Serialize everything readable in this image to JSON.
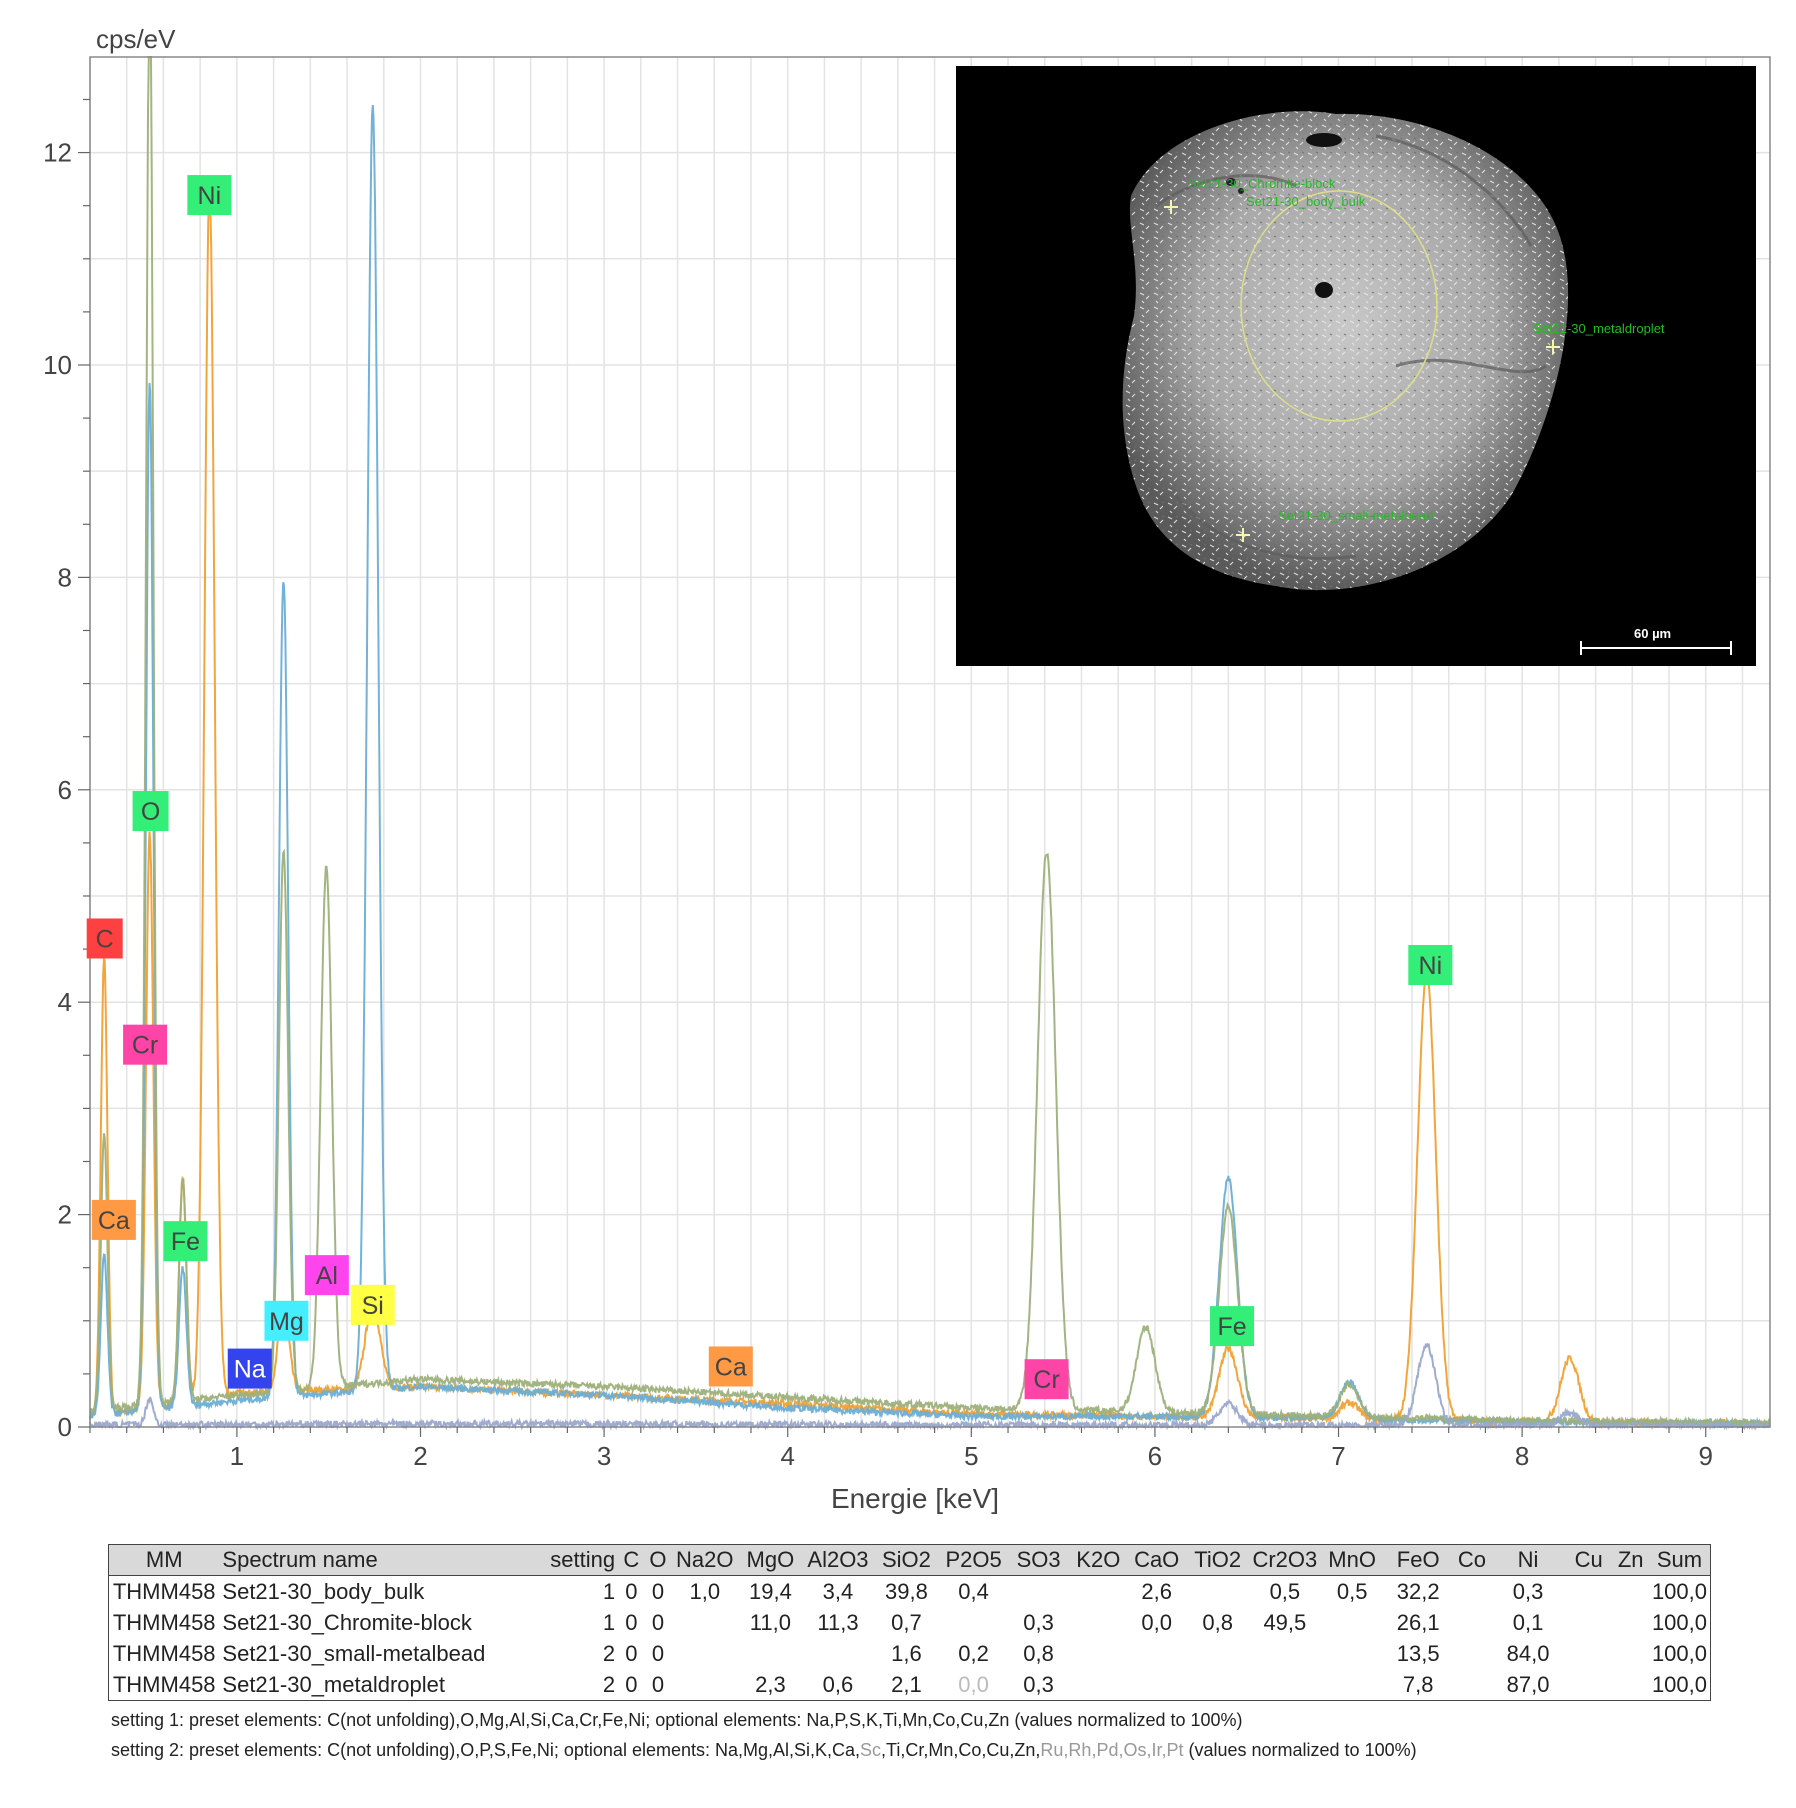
{
  "chart_data": {
    "type": "line",
    "ylabel": "cps/eV",
    "xlabel": "Energie [keV]",
    "xlim": [
      0.2,
      9.35
    ],
    "ylim": [
      0,
      12.9
    ],
    "grid": true,
    "x_ticks": [
      1,
      2,
      3,
      4,
      5,
      6,
      7,
      8,
      9
    ],
    "y_ticks": [
      0,
      2,
      4,
      6,
      8,
      10,
      12
    ],
    "series": [
      {
        "color": "#f0a030",
        "baseline": [
          [
            0.2,
            0.1
          ],
          [
            1,
            0.32
          ],
          [
            2,
            0.38
          ],
          [
            3,
            0.3
          ],
          [
            4,
            0.22
          ],
          [
            5,
            0.12
          ],
          [
            6,
            0.1
          ],
          [
            7,
            0.08
          ],
          [
            8,
            0.05
          ],
          [
            9.35,
            0.03
          ]
        ],
        "peaks": [
          [
            0.277,
            4.3,
            0.018
          ],
          [
            0.525,
            5.4,
            0.02
          ],
          [
            0.705,
            2.1,
            0.02
          ],
          [
            0.851,
            11.4,
            0.028
          ],
          [
            1.254,
            0.8,
            0.03
          ],
          [
            1.74,
            0.8,
            0.04
          ],
          [
            6.4,
            0.65,
            0.05
          ],
          [
            7.06,
            0.15,
            0.05
          ],
          [
            7.48,
            4.2,
            0.05
          ],
          [
            8.26,
            0.6,
            0.05
          ]
        ]
      },
      {
        "color": "#6aaed6",
        "baseline": [
          [
            0.2,
            0.1
          ],
          [
            1,
            0.25
          ],
          [
            2,
            0.38
          ],
          [
            3,
            0.3
          ],
          [
            4,
            0.18
          ],
          [
            5,
            0.1
          ],
          [
            6,
            0.1
          ],
          [
            7,
            0.08
          ],
          [
            8,
            0.05
          ],
          [
            9.35,
            0.03
          ]
        ],
        "peaks": [
          [
            0.277,
            1.5,
            0.018
          ],
          [
            0.525,
            9.7,
            0.02
          ],
          [
            0.705,
            1.3,
            0.02
          ],
          [
            1.254,
            7.7,
            0.025
          ],
          [
            1.74,
            12.1,
            0.03
          ],
          [
            6.4,
            2.25,
            0.05
          ],
          [
            7.06,
            0.35,
            0.05
          ]
        ]
      },
      {
        "color": "#9db07a",
        "baseline": [
          [
            0.2,
            0.15
          ],
          [
            1,
            0.3
          ],
          [
            2,
            0.45
          ],
          [
            3,
            0.38
          ],
          [
            4,
            0.28
          ],
          [
            5,
            0.18
          ],
          [
            6,
            0.14
          ],
          [
            7,
            0.1
          ],
          [
            8,
            0.06
          ],
          [
            9.35,
            0.04
          ]
        ],
        "peaks": [
          [
            0.277,
            2.6,
            0.018
          ],
          [
            0.525,
            13.5,
            0.02
          ],
          [
            0.705,
            2.1,
            0.02
          ],
          [
            1.254,
            5.1,
            0.025
          ],
          [
            1.487,
            4.9,
            0.03
          ],
          [
            5.41,
            5.25,
            0.05
          ],
          [
            5.95,
            0.8,
            0.05
          ],
          [
            6.4,
            1.95,
            0.05
          ],
          [
            7.06,
            0.3,
            0.05
          ]
        ]
      },
      {
        "color": "#9aa8cc",
        "baseline": [
          [
            0.2,
            0.02
          ],
          [
            2,
            0.03
          ],
          [
            5,
            0.02
          ],
          [
            9.35,
            0.01
          ]
        ],
        "peaks": [
          [
            0.525,
            0.25,
            0.02
          ],
          [
            6.4,
            0.2,
            0.05
          ],
          [
            7.48,
            0.75,
            0.05
          ],
          [
            8.26,
            0.12,
            0.05
          ]
        ]
      }
    ],
    "element_labels": [
      {
        "text": "Ni",
        "x": 0.85,
        "y": 11.6,
        "color": "#33ee77"
      },
      {
        "text": "O",
        "x": 0.53,
        "y": 5.8,
        "color": "#33ee77"
      },
      {
        "text": "C",
        "x": 0.28,
        "y": 4.6,
        "color": "#ff4040"
      },
      {
        "text": "Cr",
        "x": 0.5,
        "y": 3.6,
        "color": "#ff44a8"
      },
      {
        "text": "Ca",
        "x": 0.33,
        "y": 1.95,
        "color": "#ff9944"
      },
      {
        "text": "Fe",
        "x": 0.72,
        "y": 1.75,
        "color": "#33ee77"
      },
      {
        "text": "Al",
        "x": 1.49,
        "y": 1.43,
        "color": "#ff44ee"
      },
      {
        "text": "Si",
        "x": 1.74,
        "y": 1.15,
        "color": "#ffff44"
      },
      {
        "text": "Mg",
        "x": 1.27,
        "y": 1.0,
        "color": "#44eeff"
      },
      {
        "text": "Na",
        "x": 1.07,
        "y": 0.55,
        "color": "#3344ee"
      },
      {
        "text": "Ca",
        "x": 3.69,
        "y": 0.57,
        "color": "#ff9944"
      },
      {
        "text": "Cr",
        "x": 5.41,
        "y": 0.45,
        "color": "#ff44a8"
      },
      {
        "text": "Fe",
        "x": 6.42,
        "y": 0.95,
        "color": "#33ee77"
      },
      {
        "text": "Ni",
        "x": 7.5,
        "y": 4.35,
        "color": "#33ee77"
      }
    ]
  },
  "sem": {
    "labels": [
      "Set21-30_Chromite-block",
      "Set21-30_body_bulk",
      "Set21-30_metaldroplet",
      "Set21-30_small-metalbead"
    ],
    "scalebar": "60 µm"
  },
  "table": {
    "headers": [
      "MM",
      "Spectrum name",
      "setting",
      "C",
      "O",
      "Na2O",
      "MgO",
      "Al2O3",
      "SiO2",
      "P2O5",
      "SO3",
      "K2O",
      "CaO",
      "TiO2",
      "Cr2O3",
      "MnO",
      "FeO",
      "Co",
      "Ni",
      "Cu",
      "Zn",
      "Sum"
    ],
    "rows": [
      [
        "THMM458",
        "Set21-30_body_bulk",
        "1",
        "0",
        "0",
        "1,0",
        "19,4",
        "3,4",
        "39,8",
        "0,4",
        "",
        "",
        "2,6",
        "",
        "0,5",
        "0,5",
        "32,2",
        "",
        "0,3",
        "",
        "",
        "100,0"
      ],
      [
        "THMM458",
        "Set21-30_Chromite-block",
        "1",
        "0",
        "0",
        "",
        "11,0",
        "11,3",
        "0,7",
        "",
        "0,3",
        "",
        "0,0",
        "0,8",
        "49,5",
        "",
        "26,1",
        "",
        "0,1",
        "",
        "",
        "100,0"
      ],
      [
        "THMM458",
        "Set21-30_small-metalbead",
        "2",
        "0",
        "0",
        "",
        "",
        "",
        "1,6",
        "0,2",
        "0,8",
        "",
        "",
        "",
        "",
        "",
        "13,5",
        "",
        "84,0",
        "",
        "",
        "100,0"
      ],
      [
        "THMM458",
        "Set21-30_metaldroplet",
        "2",
        "0",
        "0",
        "",
        "2,3",
        "0,6",
        "2,1",
        "0,0",
        "0,3",
        "",
        "",
        "",
        "",
        "",
        "7,8",
        "",
        "87,0",
        "",
        "",
        "100,0"
      ]
    ]
  },
  "notes": {
    "setting1": "setting 1: preset elements: C(not unfolding),O,Mg,Al,Si,Ca,Cr,Fe,Ni; optional elements: Na,P,S,K,Ti,Mn,Co,Cu,Zn (values normalized to 100%)",
    "setting2_a": "setting 2: preset elements: C(not unfolding),O,P,S,Fe,Ni; optional elements: Na,Mg,Al,Si,K,Ca,",
    "setting2_sc": "Sc",
    "setting2_b": ",Ti,Cr,Mn,Co,Cu,Zn,",
    "setting2_grey": "Ru,Rh,Pd,Os,Ir,Pt",
    "setting2_c": " (values normalized to 100%)"
  }
}
